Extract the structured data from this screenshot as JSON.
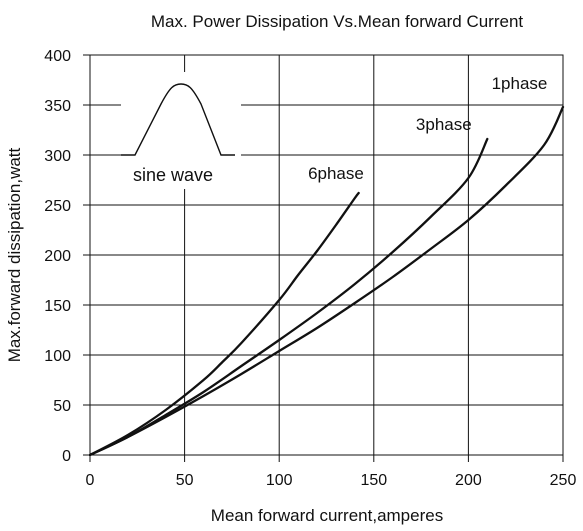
{
  "chart_data": {
    "type": "line",
    "title": "Max. Power Dissipation Vs.Mean forward Current",
    "xlabel": "Mean forward current,amperes",
    "ylabel": "Max.forward dissipation,watt",
    "xlim": [
      0,
      250
    ],
    "ylim": [
      0,
      400
    ],
    "xticks": [
      "0",
      "50",
      "100",
      "150",
      "200",
      "250"
    ],
    "yticks": [
      "0",
      "50",
      "100",
      "150",
      "200",
      "250",
      "300",
      "350",
      "400"
    ],
    "grid": true,
    "legend": "inline labels",
    "series": [
      {
        "name": "1phase",
        "x": [
          0,
          20,
          40,
          60,
          80,
          100,
          120,
          140,
          160,
          180,
          200,
          220,
          240,
          250
        ],
        "y": [
          0,
          18,
          38,
          59,
          81,
          104,
          127,
          152,
          178,
          206,
          235,
          270,
          310,
          348
        ]
      },
      {
        "name": "3phase",
        "x": [
          0,
          20,
          40,
          60,
          80,
          100,
          120,
          140,
          160,
          180,
          200,
          210
        ],
        "y": [
          0,
          18,
          40,
          63,
          89,
          115,
          142,
          171,
          203,
          238,
          277,
          316
        ]
      },
      {
        "name": "6phase",
        "x": [
          0,
          20,
          40,
          60,
          70,
          80,
          100,
          110,
          120,
          130,
          140,
          142
        ],
        "y": [
          0,
          20,
          45,
          75,
          93,
          112,
          155,
          180,
          204,
          230,
          257,
          262
        ]
      }
    ],
    "annotations": [
      {
        "text": "sine wave",
        "note": "inset waveform"
      }
    ]
  }
}
